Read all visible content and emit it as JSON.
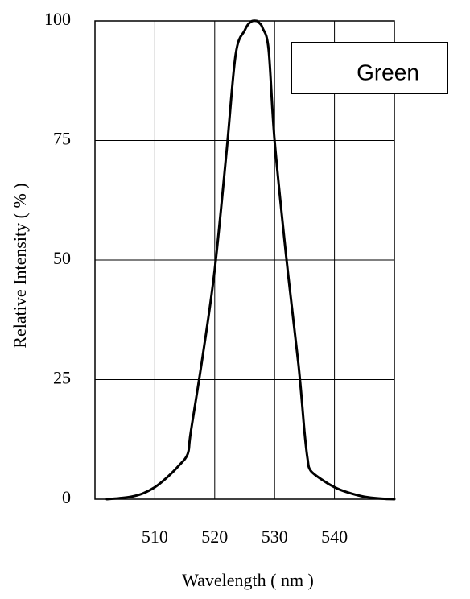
{
  "chart_data": {
    "type": "line",
    "xlabel": "Wavelength ( nm )",
    "ylabel": "Relative Intensity ( % )",
    "xlim": [
      500,
      550
    ],
    "ylim": [
      0,
      100
    ],
    "x_ticks": [
      510,
      520,
      530,
      540
    ],
    "y_ticks": [
      0,
      25,
      50,
      75,
      100
    ],
    "x_tick_labels": [
      "510",
      "520",
      "530",
      "540"
    ],
    "y_tick_labels": [
      "0",
      "25",
      "50",
      "75",
      "100"
    ],
    "grid": true,
    "legend": {
      "label": "Green",
      "placement": "top-right"
    },
    "series": [
      {
        "name": "Green",
        "color": "#000000",
        "x": [
          502,
          504,
          506,
          508,
          510,
          512,
          514,
          515.5,
          516,
          518,
          520,
          522,
          523.5,
          525,
          526,
          527,
          527.5,
          528,
          529,
          530,
          532,
          534,
          535,
          535.5,
          536,
          538,
          540,
          542,
          545,
          548,
          550
        ],
        "y": [
          0,
          0.2,
          0.5,
          1.2,
          2.5,
          4.5,
          7,
          9.5,
          14,
          30,
          48,
          73,
          93,
          98,
          99.8,
          100,
          99.5,
          98.5,
          94,
          75,
          50,
          28,
          14,
          8.5,
          6,
          4,
          2.5,
          1.5,
          0.5,
          0.1,
          0
        ]
      }
    ]
  }
}
